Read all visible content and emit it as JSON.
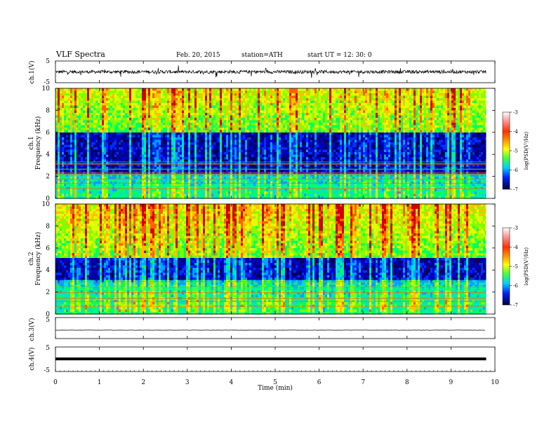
{
  "header": {
    "title": "VLF  Spectra",
    "date": "Feb. 20, 2015",
    "station": "station=ATH",
    "start": "start  UT  =   12: 30: 0"
  },
  "xaxis": {
    "label": "Time  (min)",
    "ticks": [
      "0",
      "1",
      "2",
      "3",
      "4",
      "5",
      "6",
      "7",
      "8",
      "9",
      "10"
    ]
  },
  "colorbar": {
    "label": "log(PSD(V²/Hz)",
    "ticks": [
      "-3",
      "-4",
      "-5",
      "-6",
      "-7"
    ],
    "colors": [
      "#d00000",
      "#ff8000",
      "#ffff00",
      "#00ff40",
      "#00c0ff",
      "#0000c0",
      "#000000"
    ]
  },
  "chart_data": [
    {
      "type": "line",
      "name": "ch1-waveform",
      "ylabel": "ch.1(V)",
      "xlim": [
        0,
        10
      ],
      "ylim": [
        -5,
        5
      ],
      "yticks": [
        "5",
        "-5"
      ],
      "baseline": 0,
      "amplitude_approx": 1.5,
      "duration_min": 9.8
    },
    {
      "type": "heatmap",
      "name": "ch1-spectrogram",
      "ylabel_channel": "ch.1",
      "ylabel": "Frequency  (kHz)",
      "xlim": [
        0,
        10
      ],
      "ylim": [
        0,
        10
      ],
      "yticks": [
        "0",
        "2",
        "4",
        "6",
        "8",
        "10"
      ],
      "value_scale": "log(PSD(V²/Hz)",
      "value_range": [
        -7,
        -3
      ],
      "quiet_band_khz": [
        2.3,
        6.0
      ]
    },
    {
      "type": "heatmap",
      "name": "ch2-spectrogram",
      "ylabel_channel": "ch.2",
      "ylabel": "Frequency  (kHz)",
      "xlim": [
        0,
        10
      ],
      "ylim": [
        0,
        10
      ],
      "yticks": [
        "0",
        "2",
        "4",
        "6",
        "8",
        "10"
      ],
      "value_scale": "log(PSD(V²/Hz)",
      "value_range": [
        -7,
        -3
      ],
      "quiet_band_khz": [
        3.0,
        5.0
      ]
    },
    {
      "type": "line",
      "name": "ch3-waveform",
      "ylabel": "ch.3(V)",
      "xlim": [
        0,
        10
      ],
      "ylim": [
        -5,
        5
      ],
      "yticks": [
        "5"
      ],
      "baseline": 0,
      "amplitude_approx": 0.1
    },
    {
      "type": "line",
      "name": "ch4-waveform",
      "ylabel": "ch.4(V)",
      "xlim": [
        0,
        10
      ],
      "ylim": [
        -5,
        5
      ],
      "yticks": [
        "5",
        "-5"
      ],
      "baseline": 0,
      "amplitude_approx": 0.2
    }
  ]
}
